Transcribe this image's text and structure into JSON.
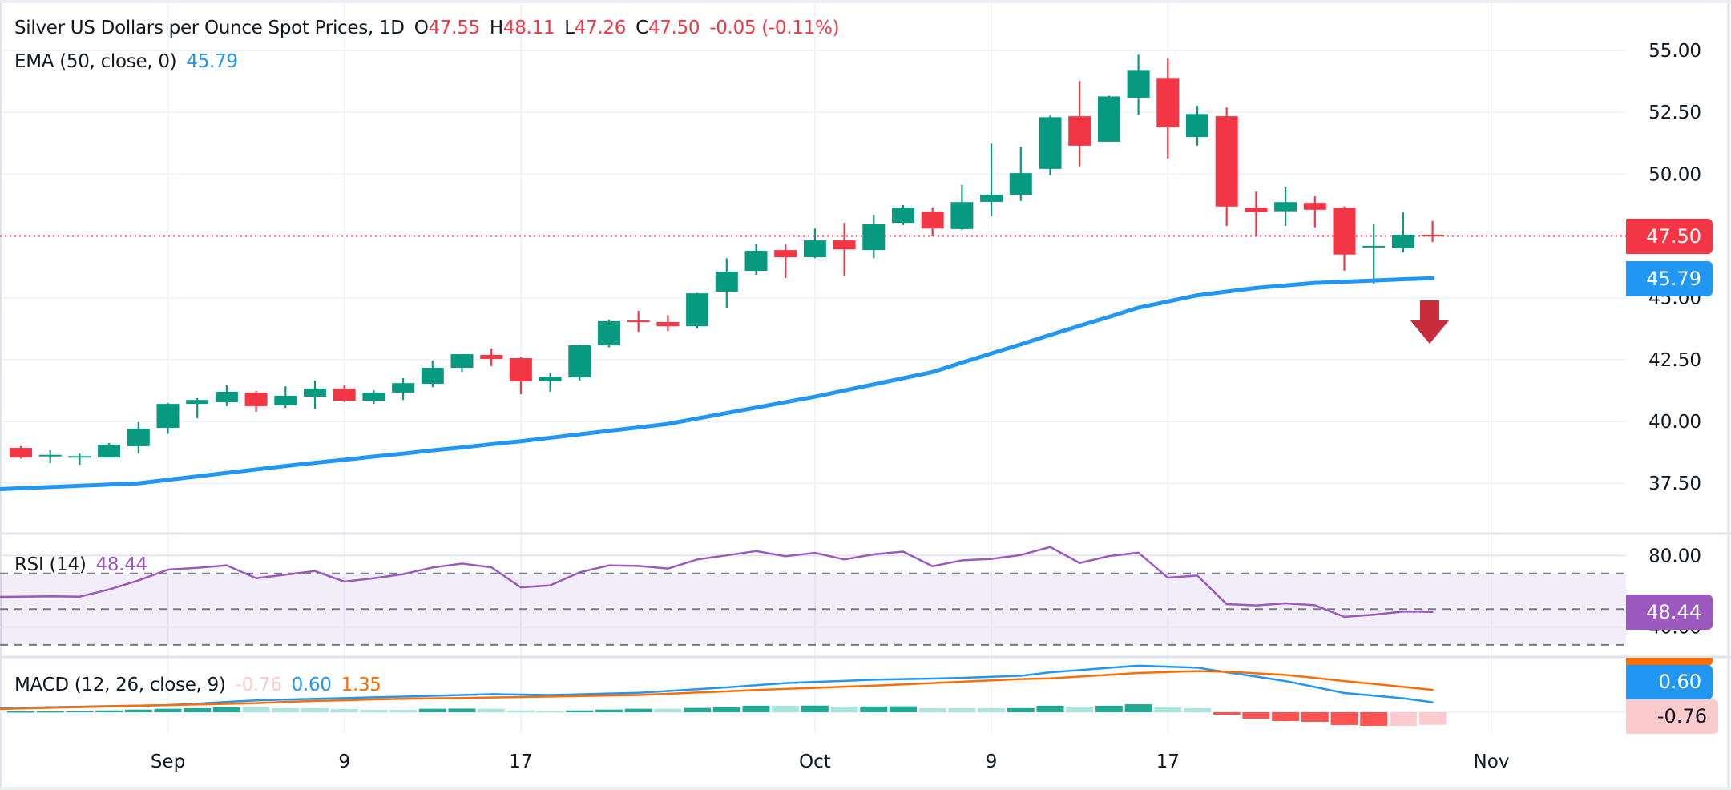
{
  "header": {
    "title": "Silver US Dollars per Ounce Spot Prices, 1D",
    "o_label": "O",
    "o_value": "47.55",
    "h_label": "H",
    "h_value": "48.11",
    "l_label": "L",
    "l_value": "47.26",
    "c_label": "C",
    "c_value": "47.50",
    "change": "-0.05 (-0.11%)"
  },
  "ema_legend": {
    "label": "EMA (50, close, 0)",
    "value": "45.79"
  },
  "rsi_legend": {
    "label": "RSI (14)",
    "value": "48.44"
  },
  "macd_legend": {
    "label": "MACD (12, 26, close, 9)",
    "hist": "-0.76",
    "macd": "0.60",
    "signal": "1.35"
  },
  "price_tags": {
    "last": "47.50",
    "ema": "45.79",
    "rsi": "48.44",
    "macd": "0.60",
    "hist": "-0.76",
    "signal": "1.35"
  },
  "colors": {
    "up": "#089981",
    "down": "#f23645",
    "ema": "#2196f3",
    "rsi": "#9b59c0",
    "macd": "#2196f3",
    "signal": "#ff6d00",
    "hist_up_strong": "#22ab94",
    "hist_up_weak": "#ace5dc",
    "hist_down_strong": "#ff5252",
    "hist_down_weak": "#fccbcd",
    "arrow": "#c92c3b"
  },
  "annotation": {
    "icon": "down-arrow-icon"
  },
  "chart_data": [
    {
      "type": "candlestick",
      "title": "Silver US Dollars per Ounce Spot Prices, 1D",
      "ylim": [
        35.9,
        56.0
      ],
      "y_ticks": [
        "55.00",
        "52.50",
        "50.00",
        "47.50",
        "45.00",
        "42.50",
        "40.00",
        "37.50"
      ],
      "x_ticks": [
        {
          "label": "Sep",
          "date": "Sep 1"
        },
        {
          "label": "9",
          "date": "Sep 9"
        },
        {
          "label": "17",
          "date": "Sep 17"
        },
        {
          "label": "Oct",
          "date": "Oct 1"
        },
        {
          "label": "9",
          "date": "Oct 9"
        },
        {
          "label": "17",
          "date": "Oct 17"
        },
        {
          "label": "Nov",
          "date": "Nov 3"
        }
      ],
      "grid": true,
      "last_price_line": 47.5,
      "candles": [
        [
          "Aug 25",
          38.93,
          39.0,
          38.5,
          38.54
        ],
        [
          "Aug 26",
          38.6,
          38.83,
          38.32,
          38.65
        ],
        [
          "Aug 27",
          38.55,
          38.7,
          38.25,
          38.6
        ],
        [
          "Aug 28",
          38.54,
          39.13,
          38.54,
          39.06
        ],
        [
          "Aug 29",
          39.0,
          39.97,
          38.7,
          39.71
        ],
        [
          "Sep 1",
          39.74,
          40.75,
          39.5,
          40.71
        ],
        [
          "Sep 2",
          40.71,
          40.94,
          40.13,
          40.87
        ],
        [
          "Sep 3",
          40.78,
          41.46,
          40.62,
          41.2
        ],
        [
          "Sep 4",
          41.17,
          41.23,
          40.39,
          40.62
        ],
        [
          "Sep 5",
          40.65,
          41.42,
          40.55,
          41.04
        ],
        [
          "Sep 8",
          41.0,
          41.65,
          40.52,
          41.33
        ],
        [
          "Sep 9",
          41.33,
          41.46,
          40.78,
          40.84
        ],
        [
          "Sep 10",
          40.84,
          41.26,
          40.71,
          41.17
        ],
        [
          "Sep 11",
          41.17,
          41.75,
          40.87,
          41.55
        ],
        [
          "Sep 12",
          41.52,
          42.46,
          41.39,
          42.17
        ],
        [
          "Sep 15",
          42.17,
          42.72,
          42.0,
          42.72
        ],
        [
          "Sep 16",
          42.69,
          42.95,
          42.24,
          42.53
        ],
        [
          "Sep 17",
          42.56,
          42.62,
          41.1,
          41.62
        ],
        [
          "Sep 18",
          41.62,
          41.97,
          41.2,
          41.81
        ],
        [
          "Sep 19",
          41.78,
          43.1,
          41.65,
          43.08
        ],
        [
          "Sep 22",
          43.08,
          44.11,
          43.0,
          44.05
        ],
        [
          "Sep 23",
          44.08,
          44.47,
          43.63,
          44.02
        ],
        [
          "Sep 24",
          44.02,
          44.3,
          43.66,
          43.85
        ],
        [
          "Sep 25",
          43.85,
          45.2,
          43.76,
          45.18
        ],
        [
          "Sep 26",
          45.25,
          46.6,
          44.6,
          46.06
        ],
        [
          "Sep 29",
          46.09,
          47.16,
          45.93,
          46.9
        ],
        [
          "Sep 30",
          46.93,
          47.16,
          45.8,
          46.64
        ],
        [
          "Oct 1",
          46.64,
          47.8,
          46.6,
          47.32
        ],
        [
          "Oct 2",
          47.32,
          48.03,
          45.9,
          46.96
        ],
        [
          "Oct 3",
          46.93,
          48.36,
          46.6,
          47.97
        ],
        [
          "Oct 6",
          48.03,
          48.75,
          47.94,
          48.65
        ],
        [
          "Oct 7",
          48.49,
          48.65,
          47.48,
          47.8
        ],
        [
          "Oct 8",
          47.78,
          49.56,
          47.74,
          48.87
        ],
        [
          "Oct 9",
          48.88,
          51.23,
          48.3,
          49.17
        ],
        [
          "Oct 10",
          49.17,
          51.1,
          48.92,
          50.04
        ],
        [
          "Oct 13",
          50.21,
          52.37,
          49.95,
          52.3
        ],
        [
          "Oct 14",
          52.34,
          53.76,
          50.31,
          51.15
        ],
        [
          "Oct 15",
          51.31,
          53.17,
          51.31,
          53.14
        ],
        [
          "Oct 16",
          53.09,
          54.83,
          52.41,
          54.21
        ],
        [
          "Oct 17",
          53.89,
          54.67,
          50.63,
          51.89
        ],
        [
          "Oct 20",
          51.5,
          52.76,
          51.15,
          52.43
        ],
        [
          "Oct 21",
          52.34,
          52.69,
          47.91,
          48.69
        ],
        [
          "Oct 22",
          48.64,
          49.29,
          47.52,
          48.47
        ],
        [
          "Oct 23",
          48.5,
          49.46,
          47.91,
          48.87
        ],
        [
          "Oct 24",
          48.84,
          49.1,
          47.85,
          48.56
        ],
        [
          "Oct 27",
          48.64,
          48.69,
          46.1,
          46.75
        ],
        [
          "Oct 28",
          47.06,
          47.97,
          45.57,
          47.1
        ],
        [
          "Oct 29",
          47.0,
          48.45,
          46.84,
          47.55
        ],
        [
          "Oct 30",
          47.55,
          48.11,
          47.26,
          47.5
        ]
      ],
      "series": [
        {
          "name": "EMA (50, close, 0)",
          "type": "line",
          "values": [
            37.3,
            37.35,
            37.4,
            37.45,
            37.5,
            37.64,
            37.78,
            37.92,
            38.06,
            38.2,
            38.33,
            38.45,
            38.58,
            38.7,
            38.83,
            38.95,
            39.08,
            39.2,
            39.34,
            39.48,
            39.62,
            39.76,
            39.9,
            40.12,
            40.34,
            40.56,
            40.78,
            41.0,
            41.25,
            41.5,
            41.75,
            42.0,
            42.38,
            42.75,
            43.12,
            43.5,
            43.87,
            44.23,
            44.6,
            44.85,
            45.1,
            45.25,
            45.4,
            45.5,
            45.6,
            45.65,
            45.7,
            45.75,
            45.79
          ]
        }
      ]
    },
    {
      "type": "line",
      "title": "RSI (14)",
      "y_ticks": [
        "80.00",
        "40.00"
      ],
      "bands": [
        70,
        50,
        30
      ],
      "series": [
        {
          "name": "RSI (14)",
          "values": [
            57.0,
            57.2,
            57.0,
            61.0,
            66.1,
            72.1,
            73.1,
            74.5,
            67.3,
            69.3,
            71.3,
            65.4,
            67.3,
            69.6,
            73.3,
            75.5,
            73.4,
            62.2,
            63.3,
            70.6,
            74.5,
            74.2,
            72.7,
            77.8,
            80.1,
            82.5,
            79.6,
            81.5,
            77.8,
            80.7,
            82.2,
            74.0,
            77.3,
            78.1,
            80.3,
            84.8,
            75.8,
            79.7,
            81.6,
            67.6,
            68.8,
            52.8,
            52.1,
            53.3,
            52.2,
            45.7,
            46.9,
            48.7,
            48.44
          ]
        }
      ]
    },
    {
      "type": "line",
      "title": "MACD (12, 26, close, 9)",
      "series": [
        {
          "name": "MACD",
          "values": [
            0.27,
            0.3,
            0.33,
            0.37,
            0.4,
            0.43,
            0.52,
            0.62,
            0.71,
            0.76,
            0.81,
            0.85,
            0.9,
            0.94,
            0.99,
            1.04,
            1.09,
            1.06,
            1.04,
            1.08,
            1.13,
            1.17,
            1.28,
            1.39,
            1.5,
            1.63,
            1.76,
            1.83,
            1.89,
            1.96,
            2.0,
            2.03,
            2.07,
            2.14,
            2.2,
            2.41,
            2.54,
            2.68,
            2.81,
            2.75,
            2.69,
            2.41,
            2.15,
            1.88,
            1.52,
            1.16,
            1.0,
            0.84,
            0.6
          ]
        },
        {
          "name": "Signal",
          "values": [
            0.23,
            0.27,
            0.31,
            0.35,
            0.39,
            0.43,
            0.47,
            0.51,
            0.55,
            0.62,
            0.68,
            0.72,
            0.77,
            0.81,
            0.84,
            0.86,
            0.89,
            0.92,
            0.95,
            0.98,
            1.01,
            1.04,
            1.11,
            1.19,
            1.26,
            1.34,
            1.41,
            1.47,
            1.54,
            1.6,
            1.68,
            1.76,
            1.84,
            1.92,
            2.0,
            2.04,
            2.15,
            2.26,
            2.37,
            2.43,
            2.48,
            2.45,
            2.35,
            2.25,
            2.07,
            1.88,
            1.71,
            1.53,
            1.35
          ]
        },
        {
          "name": "Histogram",
          "type": "bar",
          "values": [
            0.05,
            0.06,
            0.07,
            0.11,
            0.16,
            0.21,
            0.24,
            0.3,
            0.29,
            0.24,
            0.24,
            0.19,
            0.15,
            0.15,
            0.21,
            0.22,
            0.21,
            0.11,
            0.06,
            0.11,
            0.16,
            0.21,
            0.21,
            0.26,
            0.31,
            0.39,
            0.39,
            0.4,
            0.34,
            0.35,
            0.36,
            0.24,
            0.24,
            0.24,
            0.25,
            0.39,
            0.34,
            0.39,
            0.48,
            0.34,
            0.24,
            -0.15,
            -0.39,
            -0.53,
            -0.58,
            -0.77,
            -0.82,
            -0.82,
            -0.76
          ]
        }
      ]
    }
  ]
}
